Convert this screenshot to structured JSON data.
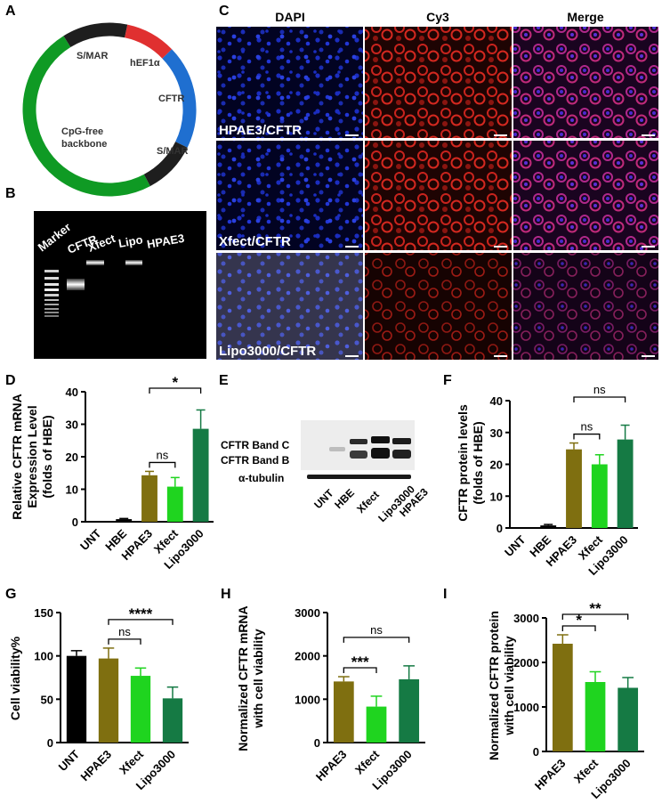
{
  "panel_letters": {
    "A": "A",
    "B": "B",
    "C": "C",
    "D": "D",
    "E": "E",
    "F": "F",
    "G": "G",
    "H": "H",
    "I": "I"
  },
  "colors": {
    "UNT": "#000000",
    "HBE": "#000000",
    "HPAE3": "#7f6f10",
    "Xfect": "#1fd41f",
    "Lipo3000": "#157a44",
    "plasmid_green": "#0f9a24",
    "plasmid_black": "#1e1e1e",
    "plasmid_red": "#e03030",
    "plasmid_blue": "#1f6fd0"
  },
  "plasmid": {
    "labels": {
      "smar_top": "S/MAR",
      "hef1a": "hEF1α",
      "cftr": "CFTR",
      "backbone_1": "CpG-free",
      "backbone_2": "backbone",
      "smar_bottom": "S/MAR"
    },
    "segments": [
      {
        "name": "S/MAR",
        "color": "#1e1e1e",
        "start_deg": -122,
        "end_deg": -78
      },
      {
        "name": "hEF1α",
        "color": "#e03030",
        "start_deg": -78,
        "end_deg": -44
      },
      {
        "name": "CFTR",
        "color": "#1f6fd0",
        "start_deg": -44,
        "end_deg": 26
      },
      {
        "name": "S/MAR",
        "color": "#1e1e1e",
        "start_deg": 26,
        "end_deg": 62
      },
      {
        "name": "CpG-free backbone",
        "color": "#0f9a24",
        "start_deg": 62,
        "end_deg": 238
      }
    ]
  },
  "gel": {
    "lanes": [
      "Marker",
      "CFTR",
      "Xfect",
      "Lipo",
      "HPAE3"
    ]
  },
  "microscopy": {
    "columns": [
      "DAPI",
      "Cy3",
      "Merge"
    ],
    "rows": [
      "HPAE3/CFTR",
      "Xfect/CFTR",
      "Lipo3000/CFTR"
    ]
  },
  "western": {
    "band_labels": [
      "CFTR Band C",
      "CFTR Band B",
      "α-tubulin"
    ],
    "lanes": [
      "UNT",
      "HBE",
      "Xfect",
      "Lipo3000",
      "HPAE3"
    ]
  },
  "chart_data": [
    {
      "panel": "D",
      "type": "bar",
      "ylabel_lines": [
        "Relative CFTR mRNA",
        "Expression Level",
        "(folds of HBE)"
      ],
      "categories": [
        "UNT",
        "HBE",
        "HPAE3",
        "Xfect",
        "Lipo3000"
      ],
      "values": [
        0.1,
        0.8,
        14.3,
        10.8,
        28.6
      ],
      "errors": [
        0,
        0.2,
        1.2,
        2.8,
        5.8
      ],
      "ylim": [
        0,
        40
      ],
      "yticks": [
        "0",
        "10",
        "20",
        "30",
        "40"
      ],
      "comparisons": [
        {
          "from": "HPAE3",
          "to": "Xfect",
          "label": "ns"
        },
        {
          "from": "HPAE3",
          "to": "Lipo3000",
          "label": "*"
        }
      ]
    },
    {
      "panel": "F",
      "type": "bar",
      "ylabel_lines": [
        "CFTR protein levels",
        "(folds of HBE)"
      ],
      "categories": [
        "UNT",
        "HBE",
        "HPAE3",
        "Xfect",
        "Lipo3000"
      ],
      "values": [
        0.1,
        0.8,
        24.7,
        20.0,
        27.8
      ],
      "errors": [
        0,
        0.3,
        2.0,
        3.0,
        4.5
      ],
      "ylim": [
        0,
        40
      ],
      "yticks": [
        "0",
        "10",
        "20",
        "30",
        "40"
      ],
      "comparisons": [
        {
          "from": "HPAE3",
          "to": "Xfect",
          "label": "ns"
        },
        {
          "from": "HPAE3",
          "to": "Lipo3000",
          "label": "ns"
        }
      ]
    },
    {
      "panel": "G",
      "type": "bar",
      "ylabel_lines": [
        "Cell viability%"
      ],
      "categories": [
        "UNT",
        "HPAE3",
        "Xfect",
        "Lipo3000"
      ],
      "values": [
        100,
        97,
        77,
        51
      ],
      "errors": [
        6,
        12,
        9,
        13
      ],
      "ylim": [
        0,
        150
      ],
      "yticks": [
        "0",
        "50",
        "100",
        "150"
      ],
      "comparisons": [
        {
          "from": "HPAE3",
          "to": "Xfect",
          "label": "ns"
        },
        {
          "from": "HPAE3",
          "to": "Lipo3000",
          "label": "****"
        }
      ]
    },
    {
      "panel": "H",
      "type": "bar",
      "ylabel_lines": [
        "Normalized CFTR mRNA",
        "with cell viability"
      ],
      "categories": [
        "HPAE3",
        "Xfect",
        "Lipo3000"
      ],
      "values": [
        1410,
        830,
        1460
      ],
      "errors": [
        110,
        240,
        310
      ],
      "ylim": [
        0,
        3000
      ],
      "yticks": [
        "0",
        "1000",
        "2000",
        "3000"
      ],
      "comparisons": [
        {
          "from": "HPAE3",
          "to": "Xfect",
          "label": "***"
        },
        {
          "from": "HPAE3",
          "to": "Lipo3000",
          "label": "ns"
        }
      ]
    },
    {
      "panel": "I",
      "type": "bar",
      "ylabel_lines": [
        "Normalized CFTR protein",
        "with cell viability"
      ],
      "categories": [
        "HPAE3",
        "Xfect",
        "Lipo3000"
      ],
      "values": [
        2420,
        1560,
        1430
      ],
      "errors": [
        200,
        230,
        230
      ],
      "ylim": [
        0,
        3000
      ],
      "yticks": [
        "0",
        "1000",
        "2000",
        "3000"
      ],
      "comparisons": [
        {
          "from": "HPAE3",
          "to": "Xfect",
          "label": "*"
        },
        {
          "from": "HPAE3",
          "to": "Lipo3000",
          "label": "**"
        }
      ]
    }
  ]
}
